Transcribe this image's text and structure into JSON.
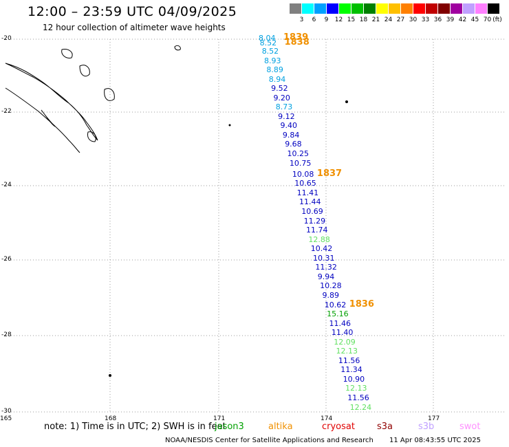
{
  "title": "12:00 – 23:59 UTC 04/09/2025",
  "subtitle": "12 hour collection of altimeter wave heights",
  "legend": {
    "unit": "(ft)",
    "items": [
      {
        "label": "3",
        "color": "#808080"
      },
      {
        "label": "6",
        "color": "#00ffff"
      },
      {
        "label": "9",
        "color": "#00a0ff"
      },
      {
        "label": "12",
        "color": "#0000ff"
      },
      {
        "label": "15",
        "color": "#00ff00"
      },
      {
        "label": "18",
        "color": "#00c000"
      },
      {
        "label": "21",
        "color": "#008000"
      },
      {
        "label": "24",
        "color": "#ffff00"
      },
      {
        "label": "27",
        "color": "#ffc000"
      },
      {
        "label": "30",
        "color": "#ff8000"
      },
      {
        "label": "33",
        "color": "#ff0000"
      },
      {
        "label": "36",
        "color": "#c00000"
      },
      {
        "label": "39",
        "color": "#800000"
      },
      {
        "label": "42",
        "color": "#a000a0"
      },
      {
        "label": "45",
        "color": "#c0a0ff"
      },
      {
        "label": "70",
        "color": "#ff80ff"
      },
      {
        "label": "",
        "color": "#000000"
      }
    ]
  },
  "map": {
    "lat_labels": [
      "-20",
      "-22",
      "-24",
      "-26",
      "-28",
      "-30"
    ],
    "lon_labels": [
      "165",
      "168",
      "171",
      "174",
      "177"
    ]
  },
  "track": {
    "times": [
      {
        "label": "1839",
        "lat": -20.0
      },
      {
        "label": "1838",
        "lat": -20.12
      },
      {
        "label": "1837",
        "lat": -23.65
      },
      {
        "label": "1836",
        "lat": -27.15
      }
    ],
    "points": [
      {
        "value": "8.04",
        "lat": -20.0,
        "color": "#00a0e0"
      },
      {
        "value": "8.52",
        "lat": -20.12,
        "color": "#00a0e0"
      },
      {
        "value": "8.52",
        "lat": -20.35,
        "color": "#00a0e0"
      },
      {
        "value": "8.93",
        "lat": -20.6,
        "color": "#00a0e0"
      },
      {
        "value": "8.89",
        "lat": -20.85,
        "color": "#00a0e0"
      },
      {
        "value": "8.94",
        "lat": -21.1,
        "color": "#00a0e0"
      },
      {
        "value": "9.52",
        "lat": -21.35,
        "color": "#0000c0"
      },
      {
        "value": "9.20",
        "lat": -21.6,
        "color": "#0000c0"
      },
      {
        "value": "8.73",
        "lat": -21.85,
        "color": "#00a0e0"
      },
      {
        "value": "9.12",
        "lat": -22.1,
        "color": "#0000c0"
      },
      {
        "value": "9.40",
        "lat": -22.35,
        "color": "#0000c0"
      },
      {
        "value": "9.84",
        "lat": -22.6,
        "color": "#0000c0"
      },
      {
        "value": "9.68",
        "lat": -22.85,
        "color": "#0000c0"
      },
      {
        "value": "10.25",
        "lat": -23.1,
        "color": "#0000c0"
      },
      {
        "value": "10.75",
        "lat": -23.35,
        "color": "#0000c0"
      },
      {
        "value": "10.08",
        "lat": -23.65,
        "color": "#0000c0"
      },
      {
        "value": "10.65",
        "lat": -23.9,
        "color": "#0000c0"
      },
      {
        "value": "11.41",
        "lat": -24.15,
        "color": "#0000c0"
      },
      {
        "value": "11.44",
        "lat": -24.4,
        "color": "#0000c0"
      },
      {
        "value": "10.69",
        "lat": -24.65,
        "color": "#0000c0"
      },
      {
        "value": "11.29",
        "lat": -24.9,
        "color": "#0000c0"
      },
      {
        "value": "11.74",
        "lat": -25.15,
        "color": "#0000c0"
      },
      {
        "value": "12.88",
        "lat": -25.4,
        "color": "#60e060"
      },
      {
        "value": "10.42",
        "lat": -25.65,
        "color": "#0000c0"
      },
      {
        "value": "10.31",
        "lat": -25.9,
        "color": "#0000c0"
      },
      {
        "value": "11.32",
        "lat": -26.15,
        "color": "#0000c0"
      },
      {
        "value": "9.94",
        "lat": -26.4,
        "color": "#0000c0"
      },
      {
        "value": "10.28",
        "lat": -26.65,
        "color": "#0000c0"
      },
      {
        "value": "9.89",
        "lat": -26.9,
        "color": "#0000c0"
      },
      {
        "value": "10.62",
        "lat": -27.15,
        "color": "#0000c0"
      },
      {
        "value": "15.16",
        "lat": -27.4,
        "color": "#00a000"
      },
      {
        "value": "11.46",
        "lat": -27.65,
        "color": "#0000c0"
      },
      {
        "value": "11.40",
        "lat": -27.9,
        "color": "#0000c0"
      },
      {
        "value": "12.09",
        "lat": -28.15,
        "color": "#60e060"
      },
      {
        "value": "12.13",
        "lat": -28.4,
        "color": "#60e060"
      },
      {
        "value": "11.56",
        "lat": -28.65,
        "color": "#0000c0"
      },
      {
        "value": "11.34",
        "lat": -28.9,
        "color": "#0000c0"
      },
      {
        "value": "10.90",
        "lat": -29.15,
        "color": "#0000c0"
      },
      {
        "value": "12.13",
        "lat": -29.4,
        "color": "#60e060"
      },
      {
        "value": "11.56",
        "lat": -29.65,
        "color": "#0000c0"
      },
      {
        "value": "12.24",
        "lat": -29.9,
        "color": "#60e060"
      }
    ]
  },
  "note": "note:  1) Time is in UTC; 2) SWH is in feet",
  "satellites": [
    {
      "label": "jason3",
      "color": "#00a000"
    },
    {
      "label": "altika",
      "color": "#f09000"
    },
    {
      "label": "cryosat",
      "color": "#e00000"
    },
    {
      "label": "s3a",
      "color": "#900000"
    },
    {
      "label": "s3b",
      "color": "#c0a0ff"
    },
    {
      "label": "swot",
      "color": "#ff90ff"
    }
  ],
  "credit": "NOAA/NESDIS Center for Satellite Applications and Research",
  "timestamp": "11 Apr 08:43:55 UTC 2025"
}
